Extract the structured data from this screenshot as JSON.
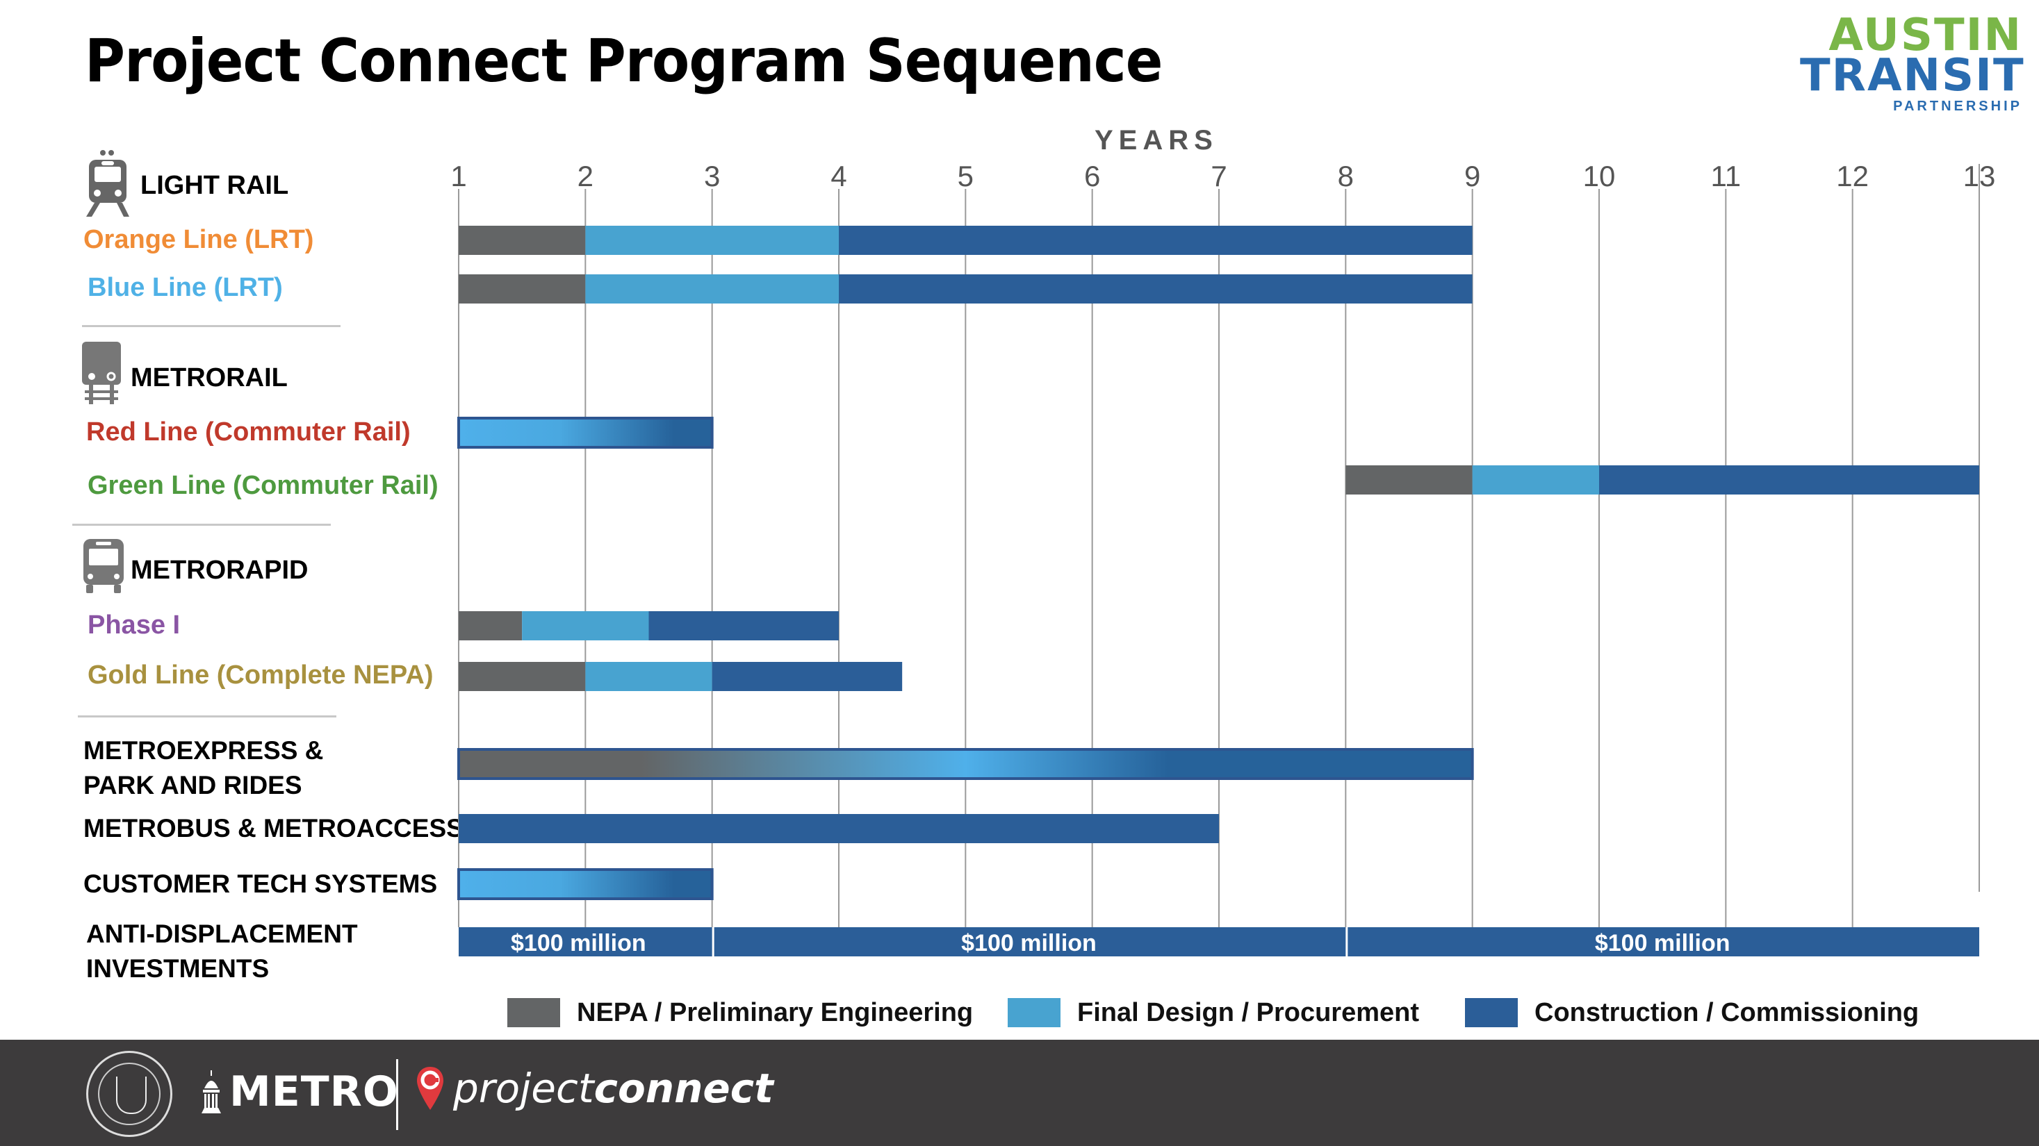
{
  "title": "Project Connect Program Sequence",
  "logo": {
    "line1": "AUSTIN",
    "line2": "TRANSIT",
    "line3": "PARTNERSHIP"
  },
  "colors": {
    "nepa": "#636566",
    "final_design": "#48a3d0",
    "construction": "#2b5e98",
    "gradient_light": "#4fb0ea",
    "grid": "#9a9a9a",
    "footer": "#3d3b3c",
    "orange": "#f08c36",
    "blue": "#4fb1e6",
    "red": "#c0392b",
    "green": "#4e9a3f",
    "purple": "#8a55a4",
    "gold": "#a8913f"
  },
  "sections": {
    "light_rail": {
      "label": "LIGHT RAIL",
      "icon": "light-rail-train-icon"
    },
    "metrorail": {
      "label": "METRORAIL",
      "icon": "commuter-train-icon"
    },
    "metrorapid": {
      "label": "METRORAPID",
      "icon": "bus-icon"
    }
  },
  "rows": [
    {
      "label": "Orange Line (LRT)",
      "color_key": "orange"
    },
    {
      "label": "Blue Line (LRT)",
      "color_key": "blue"
    },
    {
      "label": "Red Line (Commuter Rail)",
      "color_key": "red"
    },
    {
      "label": "Green Line (Commuter Rail)",
      "color_key": "green"
    },
    {
      "label": "Phase I",
      "color_key": "purple"
    },
    {
      "label": "Gold Line (Complete NEPA)",
      "color_key": "gold"
    },
    {
      "label": "METROEXPRESS &\nPARK AND RIDES",
      "line1": "METROEXPRESS &",
      "line2": "PARK AND RIDES"
    },
    {
      "label": "METROBUS & METROACCESS"
    },
    {
      "label": "CUSTOMER TECH SYSTEMS"
    },
    {
      "label": "ANTI-DISPLACEMENT\nINVESTMENTS",
      "line1": "ANTI-DISPLACEMENT",
      "line2": "INVESTMENTS"
    }
  ],
  "chart_data": {
    "type": "gantt",
    "title": "Project Connect Program Sequence",
    "xlabel": "YEARS",
    "x_ticks": [
      1,
      2,
      3,
      4,
      5,
      6,
      7,
      8,
      9,
      10,
      11,
      12,
      13
    ],
    "xlim": [
      1,
      13
    ],
    "grid": true,
    "legend_position": "bottom",
    "legend": [
      {
        "key": "nepa",
        "label": "NEPA / Preliminary Engineering"
      },
      {
        "key": "final_design",
        "label": "Final Design / Procurement"
      },
      {
        "key": "construction",
        "label": "Construction / Commissioning"
      }
    ],
    "tasks": [
      {
        "name": "Orange Line (LRT)",
        "segments": [
          {
            "phase": "nepa",
            "start": 1,
            "end": 2
          },
          {
            "phase": "final_design",
            "start": 2,
            "end": 4
          },
          {
            "phase": "construction",
            "start": 4,
            "end": 9
          }
        ]
      },
      {
        "name": "Blue Line (LRT)",
        "segments": [
          {
            "phase": "nepa",
            "start": 1,
            "end": 2
          },
          {
            "phase": "final_design",
            "start": 2,
            "end": 4
          },
          {
            "phase": "construction",
            "start": 4,
            "end": 9
          }
        ]
      },
      {
        "name": "Red Line (Commuter Rail)",
        "segments": [
          {
            "phase": "gradient_fd_to_construction",
            "start": 1,
            "end": 3
          }
        ]
      },
      {
        "name": "Green Line (Commuter Rail)",
        "segments": [
          {
            "phase": "nepa",
            "start": 8,
            "end": 9
          },
          {
            "phase": "final_design",
            "start": 9,
            "end": 10
          },
          {
            "phase": "construction",
            "start": 10,
            "end": 13
          }
        ]
      },
      {
        "name": "Phase I",
        "segments": [
          {
            "phase": "nepa",
            "start": 1,
            "end": 1.5
          },
          {
            "phase": "final_design",
            "start": 1.5,
            "end": 2.5
          },
          {
            "phase": "construction",
            "start": 2.5,
            "end": 4
          }
        ]
      },
      {
        "name": "Gold Line (Complete NEPA)",
        "segments": [
          {
            "phase": "nepa",
            "start": 1,
            "end": 2
          },
          {
            "phase": "final_design",
            "start": 2,
            "end": 3
          },
          {
            "phase": "construction",
            "start": 3,
            "end": 4.5
          }
        ]
      },
      {
        "name": "METROEXPRESS & PARK AND RIDES",
        "segments": [
          {
            "phase": "gradient_all_phases",
            "start": 1,
            "end": 9
          }
        ]
      },
      {
        "name": "METROBUS & METROACCESS",
        "segments": [
          {
            "phase": "construction",
            "start": 1,
            "end": 7
          }
        ]
      },
      {
        "name": "CUSTOMER TECH SYSTEMS",
        "segments": [
          {
            "phase": "gradient_fd_to_construction",
            "start": 1,
            "end": 3
          }
        ]
      },
      {
        "name": "ANTI-DISPLACEMENT INVESTMENTS",
        "segments": [
          {
            "phase": "construction",
            "start": 1,
            "end": 3,
            "label": "$100 million"
          },
          {
            "phase": "construction",
            "start": 3,
            "end": 8,
            "label": "$100 million"
          },
          {
            "phase": "construction",
            "start": 8,
            "end": 13,
            "label": "$100 million"
          }
        ]
      }
    ]
  },
  "footer": {
    "seal_label": "City of Austin seal",
    "metro_label": "METRO",
    "projectconnect_light": "project",
    "projectconnect_bold": "connect"
  }
}
